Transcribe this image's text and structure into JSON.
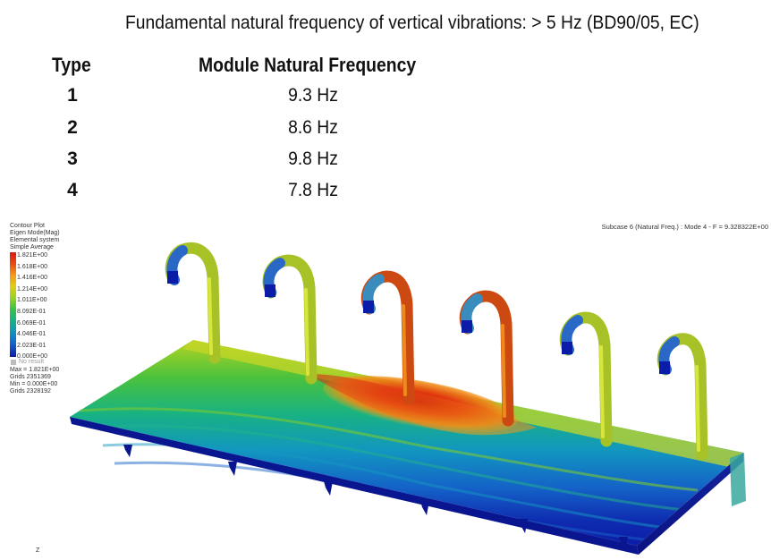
{
  "headline": "Fundamental natural frequency of vertical vibrations: > 5 Hz  (BD90/05, EC)",
  "table": {
    "header_type": "Type",
    "header_frequency": "Module Natural Frequency",
    "rows": [
      {
        "type": "1",
        "frequency": "9.3 Hz"
      },
      {
        "type": "2",
        "frequency": "8.6 Hz"
      },
      {
        "type": "3",
        "frequency": "9.8 Hz"
      },
      {
        "type": "4",
        "frequency": "7.8 Hz"
      }
    ]
  },
  "contour_legend": {
    "header": [
      "Contour Plot",
      "Eigen Mode(Mag)",
      "Elemental system",
      "Simple Average"
    ],
    "scale_values": [
      "1.821E+00",
      "1.618E+00",
      "1.416E+00",
      "1.214E+00",
      "1.011E+00",
      "8.092E-01",
      "6.069E-01",
      "4.046E-01",
      "2.023E-01",
      "0.000E+00"
    ],
    "no_result": "No result",
    "stats": [
      "Max = 1.821E+00",
      "Grids 2351369",
      "Min = 0.000E+00",
      "Grids 2328192"
    ]
  },
  "subcase_label": "Subcase 6 (Natural Freq.) : Mode 4 - F = 9.328322E+00",
  "axis_label": "Z",
  "colors": {
    "red": "#d81a10",
    "orange": "#f07a16",
    "yellow": "#d8d418",
    "lime": "#9ad028",
    "green": "#3abf42",
    "teal": "#16b08a",
    "cyan": "#1292bf",
    "blue": "#1460c8",
    "navy": "#0b1ca8"
  }
}
